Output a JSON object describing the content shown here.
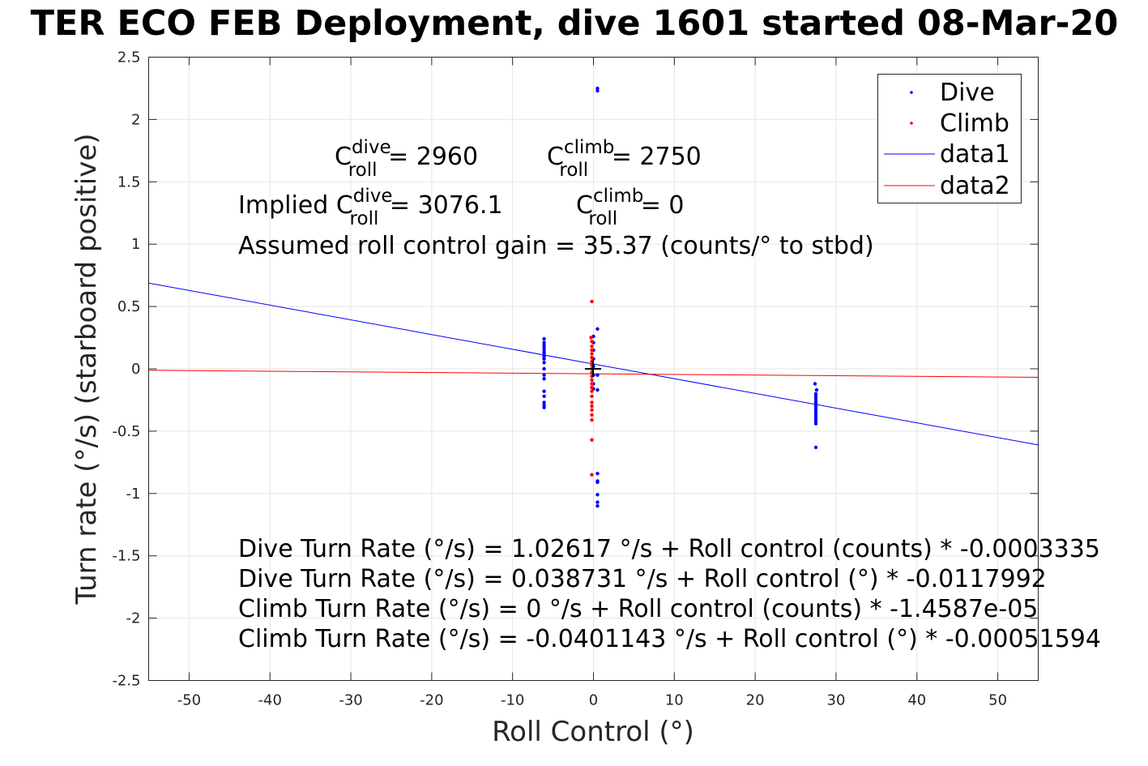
{
  "chart_data": {
    "type": "scatter",
    "title": "TER ECO FEB Deployment, dive 1601 started 08-Mar-20",
    "xlabel": "Roll Control (°)",
    "ylabel": "Turn rate (°/s) (starboard positive)",
    "xlim": [
      -55,
      55
    ],
    "ylim": [
      -2.5,
      2.5
    ],
    "xticks": [
      -50,
      -40,
      -30,
      -20,
      -10,
      0,
      10,
      20,
      30,
      40,
      50
    ],
    "yticks": [
      2.5,
      2,
      1.5,
      1,
      0.5,
      0,
      -0.5,
      -1,
      -1.5,
      -2,
      -2.5
    ],
    "xtick_labels": [
      "-50",
      "-40",
      "-30",
      "-20",
      "-10",
      "0",
      "10",
      "20",
      "30",
      "40",
      "50"
    ],
    "ytick_labels": [
      "2.5",
      "2",
      "1.5",
      "1",
      "0.5",
      "0",
      "-0.5",
      "-1",
      "-1.5",
      "-2",
      "-2.5"
    ],
    "grid": true,
    "legend_position": "top-right",
    "series": [
      {
        "name": "Dive",
        "kind": "points",
        "color": "#0000ff",
        "points": [
          [
            -6.1,
            0.24
          ],
          [
            -6.1,
            0.21
          ],
          [
            -6.1,
            0.19
          ],
          [
            -6.1,
            0.17
          ],
          [
            -6.1,
            0.15
          ],
          [
            -6.1,
            0.13
          ],
          [
            -6.1,
            0.11
          ],
          [
            -6.1,
            0.1
          ],
          [
            -6.1,
            0.08
          ],
          [
            -6.1,
            0.05
          ],
          [
            -6.1,
            0.0
          ],
          [
            -6.1,
            -0.05
          ],
          [
            -6.1,
            -0.08
          ],
          [
            -6.1,
            -0.18
          ],
          [
            -6.1,
            -0.22
          ],
          [
            -6.1,
            -0.27
          ],
          [
            -6.1,
            -0.29
          ],
          [
            -6.1,
            -0.31
          ],
          [
            0.0,
            0.26
          ],
          [
            0.0,
            0.21
          ],
          [
            0.0,
            0.15
          ],
          [
            0.0,
            0.08
          ],
          [
            0.0,
            0.02
          ],
          [
            0.0,
            -0.05
          ],
          [
            0.0,
            -0.12
          ],
          [
            0.0,
            -0.16
          ],
          [
            0.5,
            2.25
          ],
          [
            0.5,
            2.23
          ],
          [
            0.5,
            0.32
          ],
          [
            0.5,
            -0.05
          ],
          [
            0.5,
            -0.17
          ],
          [
            0.5,
            -0.84
          ],
          [
            0.5,
            -0.9
          ],
          [
            0.5,
            -0.91
          ],
          [
            0.5,
            -1.01
          ],
          [
            0.5,
            -1.07
          ],
          [
            0.5,
            -1.1
          ],
          [
            27.4,
            -0.12
          ],
          [
            27.6,
            -0.17
          ],
          [
            27.5,
            -0.2
          ],
          [
            27.5,
            -0.22
          ],
          [
            27.5,
            -0.24
          ],
          [
            27.5,
            -0.26
          ],
          [
            27.5,
            -0.28
          ],
          [
            27.5,
            -0.3
          ],
          [
            27.5,
            -0.32
          ],
          [
            27.5,
            -0.34
          ],
          [
            27.5,
            -0.36
          ],
          [
            27.5,
            -0.38
          ],
          [
            27.5,
            -0.4
          ],
          [
            27.5,
            -0.42
          ],
          [
            27.5,
            -0.44
          ],
          [
            27.5,
            -0.63
          ]
        ]
      },
      {
        "name": "Climb",
        "kind": "points",
        "color": "#ff0000",
        "points": [
          [
            -0.2,
            0.54
          ],
          [
            -0.3,
            0.25
          ],
          [
            -0.2,
            0.22
          ],
          [
            -0.2,
            0.18
          ],
          [
            -0.2,
            0.15
          ],
          [
            -0.2,
            0.12
          ],
          [
            -0.2,
            0.09
          ],
          [
            -0.2,
            0.06
          ],
          [
            -0.2,
            0.03
          ],
          [
            -0.2,
            0.0
          ],
          [
            -0.2,
            -0.03
          ],
          [
            -0.2,
            -0.06
          ],
          [
            -0.2,
            -0.09
          ],
          [
            -0.2,
            -0.12
          ],
          [
            -0.2,
            -0.15
          ],
          [
            -0.2,
            -0.18
          ],
          [
            -0.2,
            -0.22
          ],
          [
            -0.2,
            -0.27
          ],
          [
            -0.2,
            -0.3
          ],
          [
            -0.2,
            -0.33
          ],
          [
            -0.2,
            -0.37
          ],
          [
            -0.2,
            -0.41
          ],
          [
            -0.2,
            -0.57
          ],
          [
            -0.2,
            -0.85
          ]
        ]
      },
      {
        "name": "data1",
        "kind": "line",
        "color": "#0000ff",
        "points": [
          [
            -55,
            0.6877
          ],
          [
            55,
            -0.6103
          ]
        ]
      },
      {
        "name": "data2",
        "kind": "line",
        "color": "#ff0000",
        "points": [
          [
            -55,
            -0.0117
          ],
          [
            55,
            -0.0685
          ]
        ]
      }
    ]
  },
  "annotations": {
    "c_dive_label": "C",
    "c_dive_sup": "dive",
    "c_dive_sub": "roll",
    "c_dive_value": " = 2960",
    "c_climb_label": "C",
    "c_climb_sup": "climb",
    "c_climb_sub": "roll",
    "c_climb_value": " = 2750",
    "implied_prefix": "Implied C",
    "implied_sup": "dive",
    "implied_sub": "roll",
    "implied_value": " = 3076.1",
    "implied_climb_label": "C",
    "implied_climb_sup": "climb",
    "implied_climb_sub": "roll",
    "implied_climb_value": " = 0",
    "gain": "Assumed roll control gain = 35.37 (counts/° to stbd)",
    "eq1": "Dive Turn Rate (°/s) = 1.02617 °/s + Roll control (counts) * -0.0003335",
    "eq2": "Dive Turn Rate (°/s) = 0.038731 °/s + Roll control (°) * -0.0117992",
    "eq3": "Climb Turn Rate (°/s) = 0 °/s + Roll control (counts) * -1.4587e-05",
    "eq4": "Climb Turn Rate (°/s) = -0.0401143 °/s + Roll control (°) * -0.00051594"
  },
  "colors": {
    "dive": "#0000ff",
    "climb": "#ff0000",
    "grid": "#e6e6e6",
    "axis": "#262626"
  }
}
